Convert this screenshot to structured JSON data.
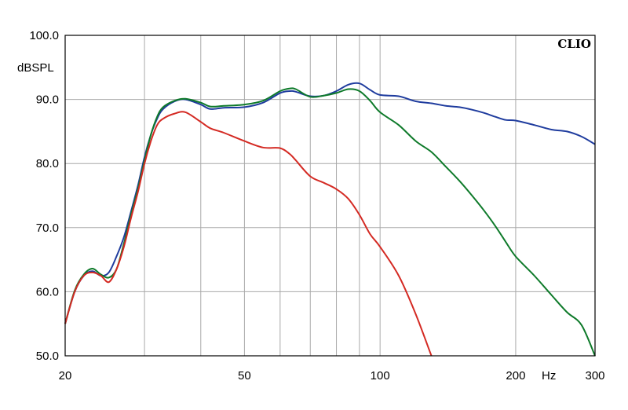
{
  "chart_data": {
    "type": "line",
    "brand": "CLIO",
    "ylabel": "dBSPL",
    "xunit": "Hz",
    "xscale": "log",
    "xlim": [
      20,
      300
    ],
    "ylim": [
      50,
      100
    ],
    "grid": true,
    "y_ticks": [
      "50.0",
      "60.0",
      "70.0",
      "80.0",
      "90.0",
      "100.0"
    ],
    "x_tick_labels": [
      {
        "v": 20,
        "label": "20"
      },
      {
        "v": 50,
        "label": "50"
      },
      {
        "v": 100,
        "label": "100"
      },
      {
        "v": 200,
        "label": "200"
      },
      {
        "v": 300,
        "label": "300"
      }
    ],
    "x_gridlines": [
      30,
      40,
      50,
      60,
      70,
      80,
      90,
      100,
      200
    ],
    "series": [
      {
        "color": "#1f3c9e",
        "x": [
          20,
          21,
          22,
          23,
          24,
          25,
          26,
          27,
          28,
          29,
          30,
          31,
          32,
          33,
          35,
          37,
          40,
          42,
          45,
          50,
          55,
          60,
          63,
          65,
          70,
          75,
          80,
          85,
          90,
          95,
          100,
          110,
          120,
          130,
          140,
          150,
          160,
          170,
          180,
          190,
          200,
          220,
          240,
          260,
          280,
          300
        ],
        "y": [
          55.0,
          60.0,
          62.5,
          63.2,
          62.5,
          63.0,
          65.5,
          68.5,
          72.5,
          76.5,
          81.0,
          84.5,
          87.0,
          88.5,
          89.7,
          90.0,
          89.2,
          88.5,
          88.7,
          88.8,
          89.5,
          91.0,
          91.3,
          91.2,
          90.5,
          90.6,
          91.3,
          92.3,
          92.5,
          91.5,
          90.7,
          90.5,
          89.7,
          89.4,
          89.0,
          88.8,
          88.4,
          87.9,
          87.3,
          86.8,
          86.7,
          86.0,
          85.3,
          85.0,
          84.2,
          83.0
        ]
      },
      {
        "color": "#0e7a2a",
        "x": [
          20,
          21,
          22,
          23,
          24,
          25,
          26,
          27,
          28,
          29,
          30,
          31,
          32,
          33,
          35,
          37,
          40,
          42,
          45,
          50,
          55,
          60,
          63,
          65,
          70,
          75,
          80,
          85,
          90,
          95,
          100,
          110,
          120,
          130,
          140,
          150,
          160,
          170,
          180,
          190,
          200,
          220,
          240,
          260,
          280,
          300
        ],
        "y": [
          55.0,
          60.2,
          62.7,
          63.6,
          62.7,
          62.2,
          63.5,
          67.5,
          72.0,
          76.0,
          80.5,
          84.5,
          87.3,
          88.8,
          89.8,
          90.1,
          89.5,
          88.9,
          89.0,
          89.2,
          89.8,
          91.3,
          91.7,
          91.6,
          90.4,
          90.6,
          91.0,
          91.6,
          91.3,
          89.8,
          88.0,
          86.0,
          83.5,
          81.8,
          79.5,
          77.3,
          75.0,
          72.7,
          70.3,
          67.8,
          65.5,
          62.5,
          59.5,
          56.8,
          54.8,
          50.0
        ]
      },
      {
        "color": "#d42a23",
        "x": [
          20,
          21,
          22,
          23,
          24,
          25,
          26,
          27,
          28,
          29,
          30,
          31,
          32,
          33,
          35,
          37,
          40,
          42,
          45,
          50,
          55,
          60,
          63,
          65,
          70,
          75,
          80,
          85,
          90,
          95,
          100,
          110,
          120,
          130
        ],
        "y": [
          55.0,
          60.0,
          62.5,
          63.0,
          62.5,
          61.5,
          63.5,
          67.0,
          71.5,
          75.5,
          80.0,
          83.5,
          86.0,
          87.0,
          87.8,
          88.0,
          86.5,
          85.5,
          84.8,
          83.5,
          82.5,
          82.4,
          81.5,
          80.5,
          78.0,
          77.0,
          76.0,
          74.5,
          72.0,
          69.0,
          67.0,
          62.5,
          56.5,
          50.0
        ]
      }
    ]
  }
}
